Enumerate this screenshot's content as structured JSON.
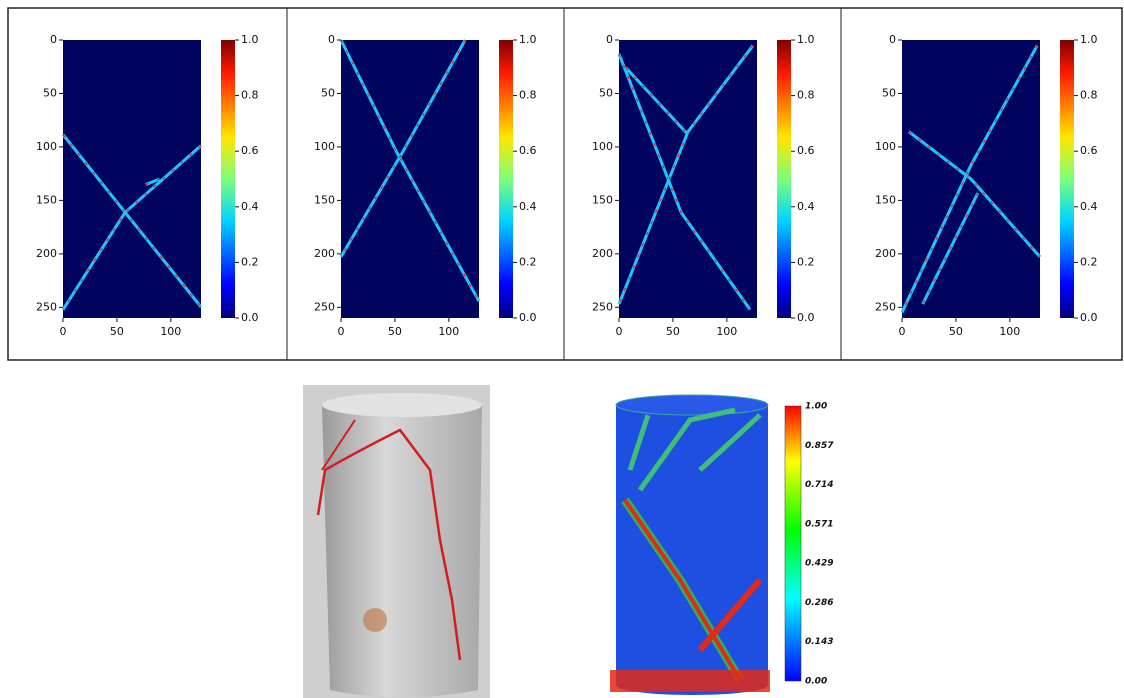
{
  "panels": [
    {
      "yticks": [
        "0",
        "50",
        "100",
        "150",
        "200",
        "250"
      ],
      "xticks": [
        "0",
        "50",
        "100"
      ],
      "colorbar": [
        "1.0",
        "0.8",
        "0.6",
        "0.4",
        "0.2",
        "0.0"
      ]
    },
    {
      "yticks": [
        "0",
        "50",
        "100",
        "150",
        "200",
        "250"
      ],
      "xticks": [
        "0",
        "50",
        "100"
      ],
      "colorbar": [
        "1.0",
        "0.8",
        "0.6",
        "0.4",
        "0.2",
        "0.0"
      ]
    },
    {
      "yticks": [
        "0",
        "50",
        "100",
        "150",
        "200",
        "250"
      ],
      "xticks": [
        "0",
        "50",
        "100"
      ],
      "colorbar": [
        "1.0",
        "0.8",
        "0.6",
        "0.4",
        "0.2",
        "0.0"
      ]
    },
    {
      "yticks": [
        "0",
        "50",
        "100",
        "150",
        "200",
        "250"
      ],
      "xticks": [
        "0",
        "50",
        "100"
      ],
      "colorbar": [
        "1.0",
        "0.8",
        "0.6",
        "0.4",
        "0.2",
        "0.0"
      ]
    }
  ],
  "model_colorbar": [
    "1.00",
    "0.857",
    "0.714",
    "0.571",
    "0.429",
    "0.286",
    "0.143",
    "0.00"
  ]
}
